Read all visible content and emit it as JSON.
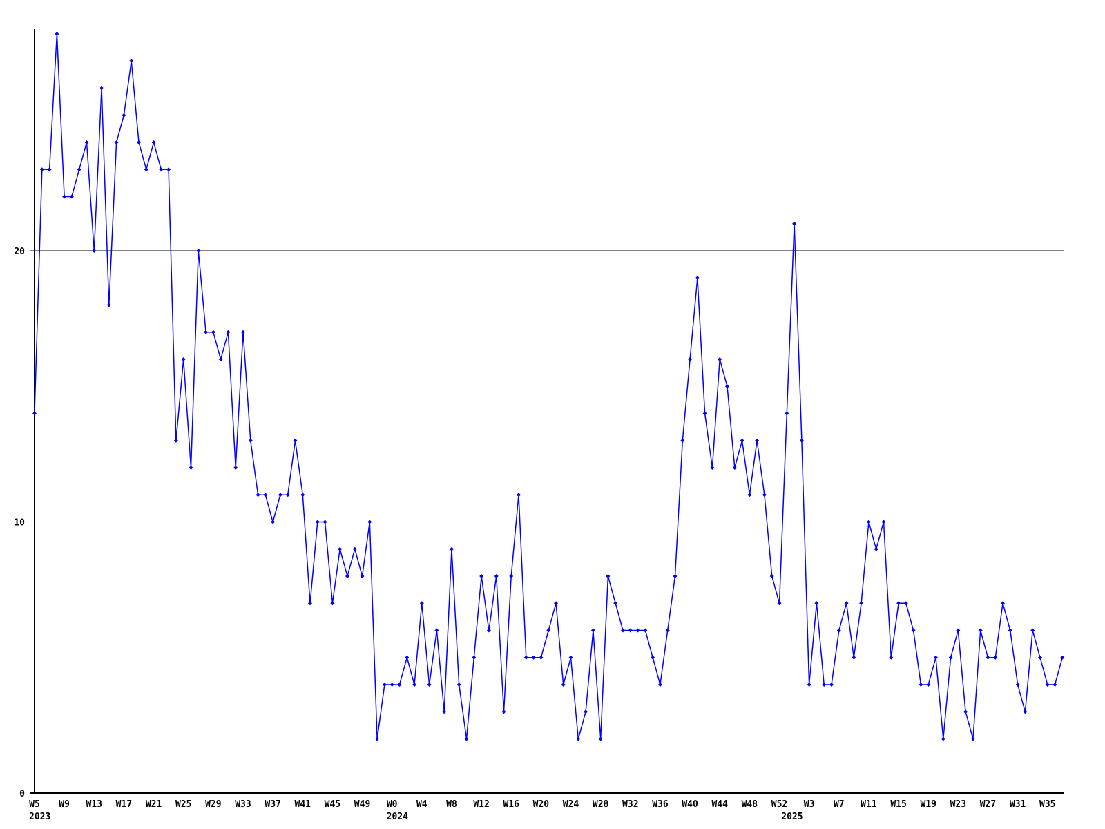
{
  "chart_data": {
    "type": "line",
    "title": "",
    "xlabel": "",
    "ylabel": "",
    "x_unit": "ISO week",
    "legend": "none",
    "grid": "horizontal-gridlines-at-10-and-20",
    "marker": "diamond",
    "line_color": "#0000ff",
    "axis_color": "#000000",
    "background_color": "#ffffff",
    "ylim": [
      0,
      28.1
    ],
    "y_ticks": [
      {
        "label": "0",
        "value": 0
      },
      {
        "label": "10",
        "value": 10
      },
      {
        "label": "20",
        "value": 20
      }
    ],
    "gridline_values": [
      10,
      20
    ],
    "series": [
      {
        "name": "2023",
        "start_week": 5,
        "values": [
          14,
          23,
          23,
          28,
          22,
          22,
          23,
          24,
          20,
          26,
          18,
          24,
          25,
          27,
          24,
          23,
          24,
          23,
          23,
          13,
          16,
          12,
          20,
          17,
          17,
          16,
          17,
          12,
          17,
          13,
          11,
          11,
          10,
          11,
          11,
          13,
          11,
          7,
          10,
          10,
          7,
          9,
          8,
          9,
          8,
          10,
          2,
          4
        ]
      },
      {
        "name": "2024",
        "start_week": 0,
        "values": [
          4,
          4,
          5,
          4,
          7,
          4,
          6,
          3,
          9,
          4,
          2,
          5,
          8,
          6,
          8,
          3,
          8,
          11,
          5,
          5,
          5,
          6,
          7,
          4,
          5,
          2,
          3,
          6,
          2,
          8,
          7,
          6,
          6,
          6,
          6,
          5,
          4,
          6,
          8,
          13,
          16,
          19,
          14,
          12,
          16,
          15,
          12,
          13,
          11,
          13,
          11,
          8,
          7
        ]
      },
      {
        "name": "2025",
        "start_week": 0,
        "values": [
          14,
          21,
          13,
          4,
          7,
          4,
          4,
          6,
          7,
          5,
          7,
          10,
          9,
          10,
          5,
          7,
          7,
          6,
          4,
          4,
          5,
          2,
          5,
          6,
          3,
          2,
          6,
          5,
          5,
          7,
          6,
          4,
          3,
          6,
          5,
          4,
          4,
          5
        ]
      }
    ],
    "x_ticks": [
      {
        "label": "W5",
        "week_index": 0
      },
      {
        "label": "W9",
        "week_index": 4
      },
      {
        "label": "W13",
        "week_index": 8
      },
      {
        "label": "W17",
        "week_index": 12
      },
      {
        "label": "W21",
        "week_index": 16
      },
      {
        "label": "W25",
        "week_index": 20
      },
      {
        "label": "W29",
        "week_index": 24
      },
      {
        "label": "W33",
        "week_index": 28
      },
      {
        "label": "W37",
        "week_index": 32
      },
      {
        "label": "W41",
        "week_index": 36
      },
      {
        "label": "W45",
        "week_index": 40
      },
      {
        "label": "W49",
        "week_index": 44
      },
      {
        "label": "W0",
        "week_index": 48
      },
      {
        "label": "W4",
        "week_index": 52
      },
      {
        "label": "W8",
        "week_index": 56
      },
      {
        "label": "W12",
        "week_index": 60
      },
      {
        "label": "W16",
        "week_index": 64
      },
      {
        "label": "W20",
        "week_index": 68
      },
      {
        "label": "W24",
        "week_index": 72
      },
      {
        "label": "W28",
        "week_index": 76
      },
      {
        "label": "W32",
        "week_index": 80
      },
      {
        "label": "W36",
        "week_index": 84
      },
      {
        "label": "W40",
        "week_index": 88
      },
      {
        "label": "W44",
        "week_index": 92
      },
      {
        "label": "W48",
        "week_index": 96
      },
      {
        "label": "W52",
        "week_index": 100
      },
      {
        "label": "W3",
        "week_index": 104
      },
      {
        "label": "W7",
        "week_index": 108
      },
      {
        "label": "W11",
        "week_index": 112
      },
      {
        "label": "W15",
        "week_index": 116
      },
      {
        "label": "W19",
        "week_index": 120
      },
      {
        "label": "W23",
        "week_index": 124
      },
      {
        "label": "W27",
        "week_index": 128
      },
      {
        "label": "W31",
        "week_index": 132
      },
      {
        "label": "W35",
        "week_index": 136
      }
    ],
    "year_labels": [
      {
        "label": "2023",
        "week_index": 0
      },
      {
        "label": "2024",
        "week_index": 48
      },
      {
        "label": "2025",
        "week_index": 101
      }
    ]
  }
}
